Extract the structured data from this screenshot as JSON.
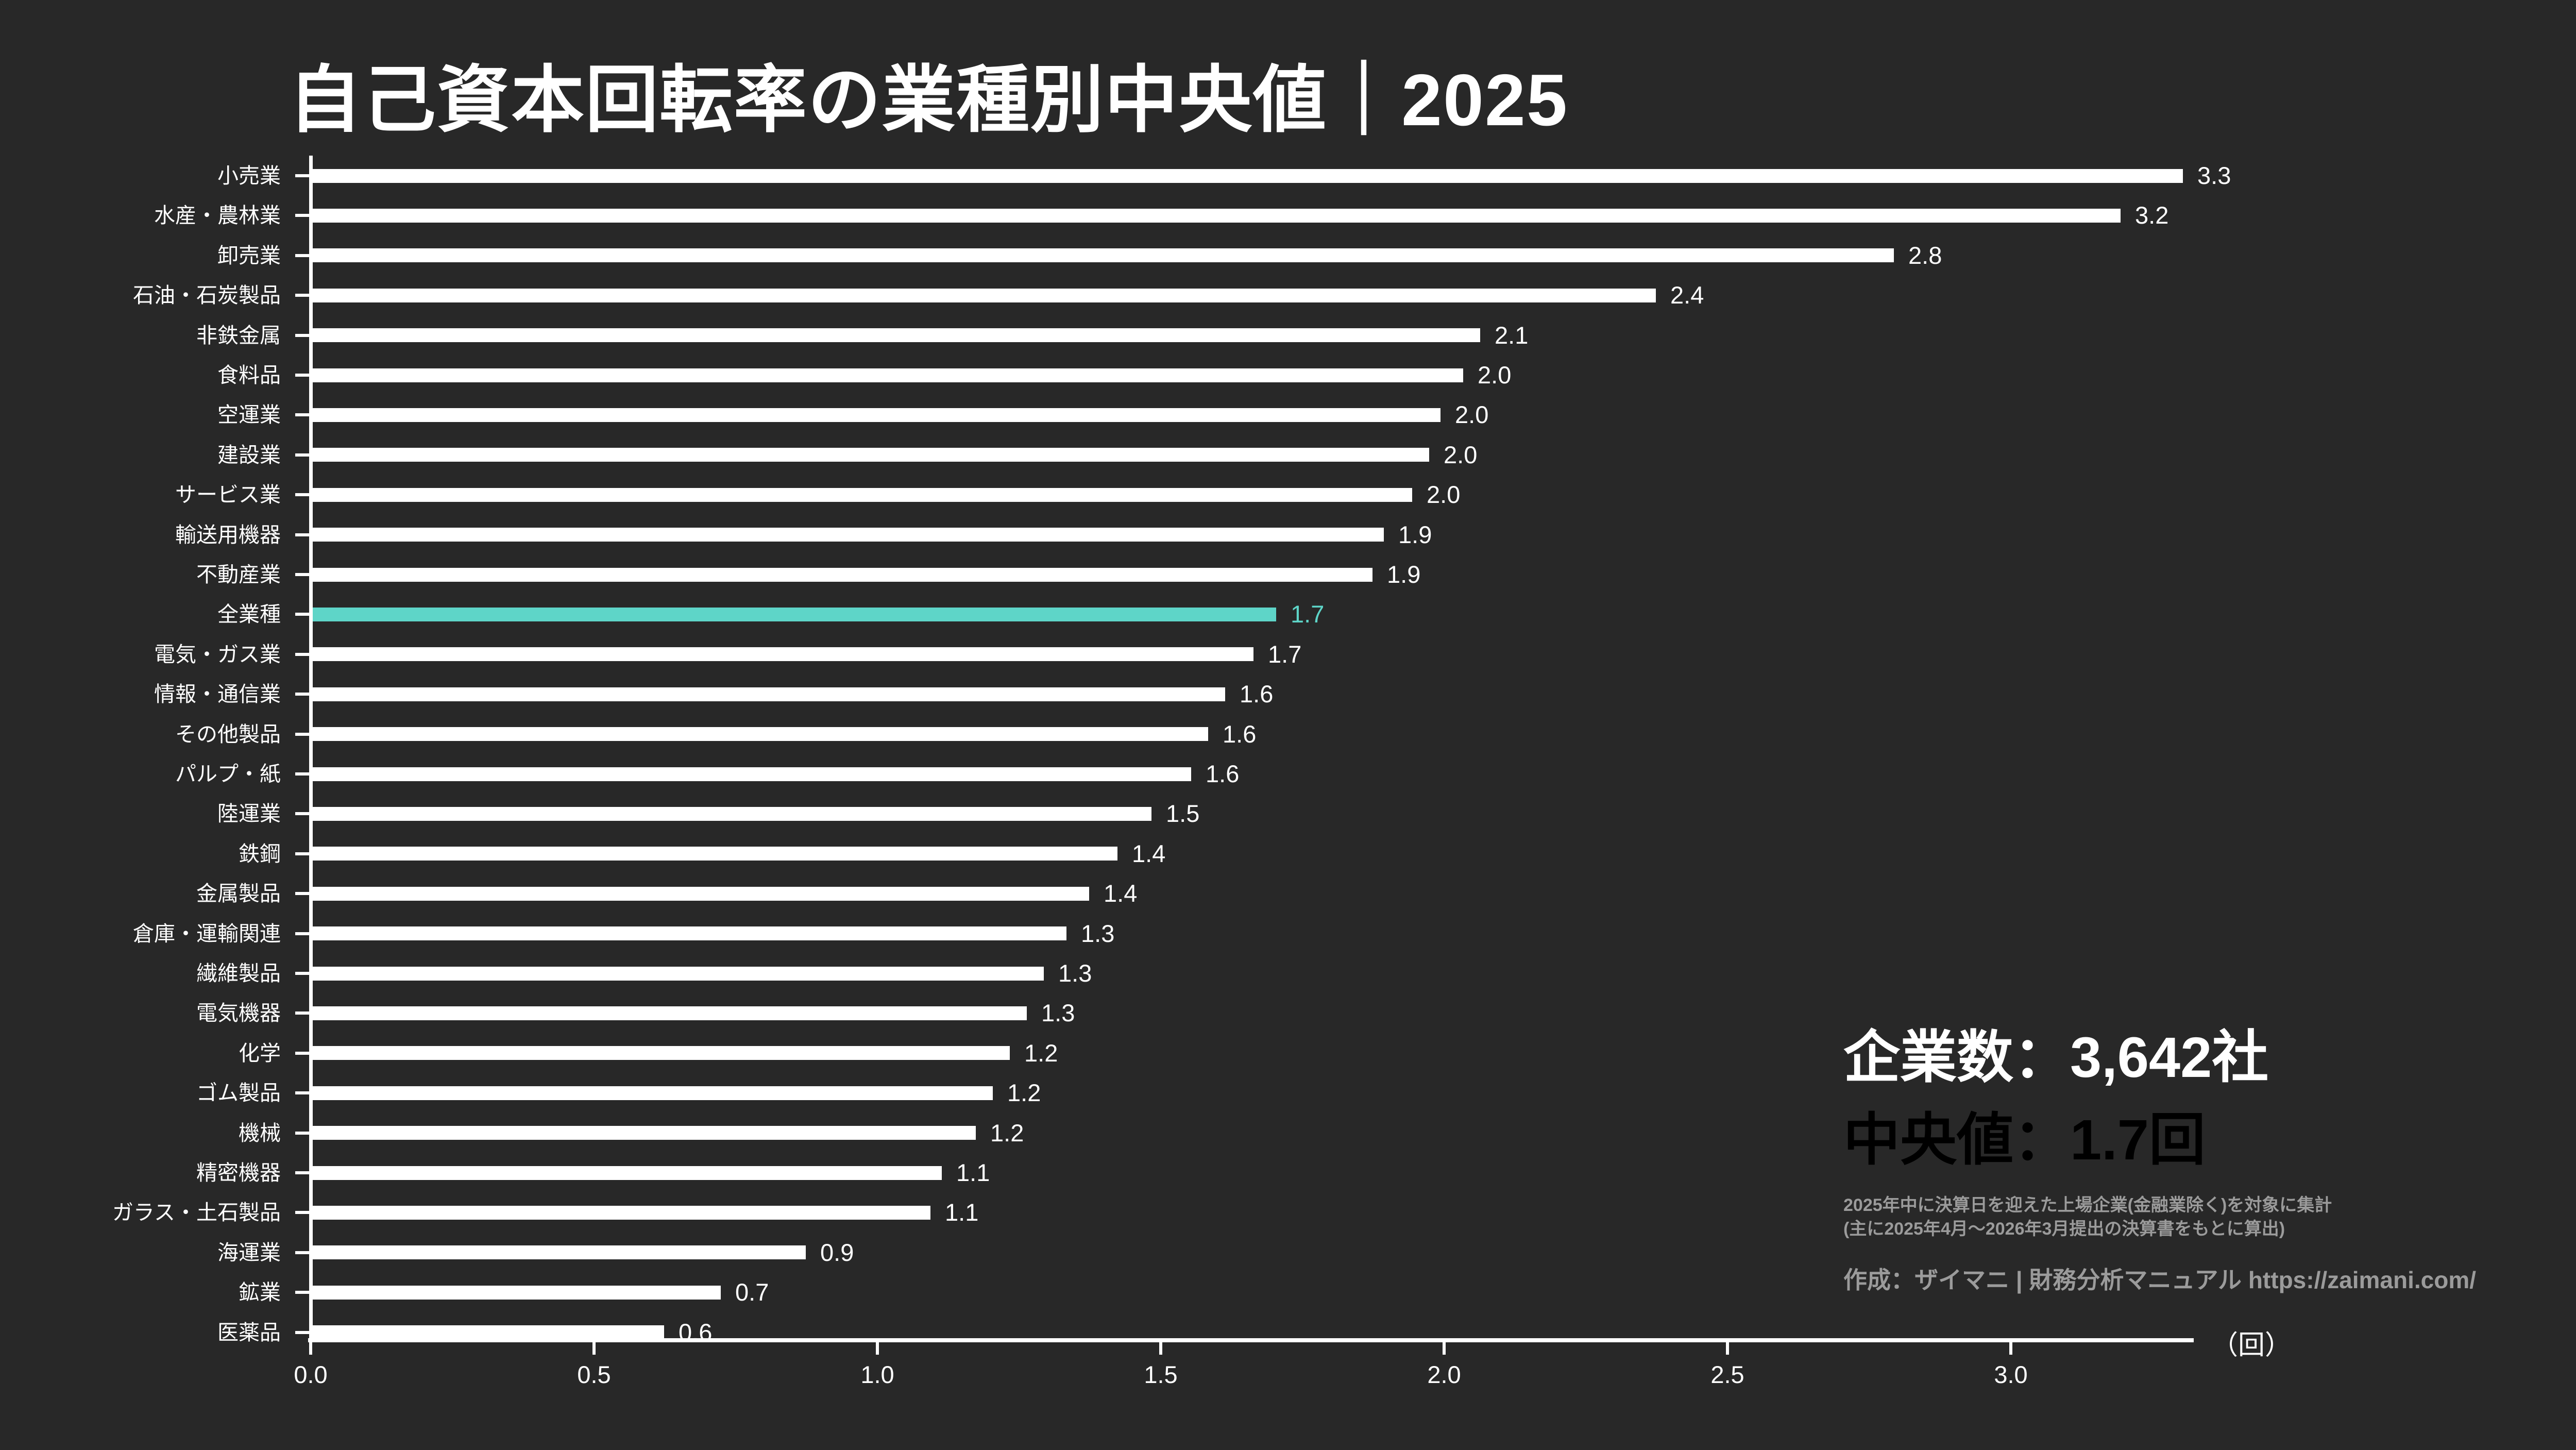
{
  "title": "自己資本回転率の業種別中央値｜2025",
  "colors": {
    "background": "#282828",
    "bar": "#ffffff",
    "highlight": "#5ED5C8",
    "text": "#ffffff",
    "muted": "#9b9b9b"
  },
  "chart_data": {
    "type": "bar",
    "orientation": "horizontal",
    "title": "自己資本回転率の業種別中央値｜2025",
    "unit": "（回）",
    "xlabel": "",
    "ylabel": "",
    "xlim": [
      0.0,
      3.3
    ],
    "grid": false,
    "legend": "none",
    "x_ticks": [
      "0.0",
      "0.5",
      "1.0",
      "1.5",
      "2.0",
      "2.5",
      "3.0"
    ],
    "highlight_category": "全業種",
    "rows": [
      {
        "label": "小売業",
        "display": "3.3",
        "value": 3.3,
        "bar": 3.3,
        "highlight": false
      },
      {
        "label": "水産・農林業",
        "display": "3.2",
        "value": 3.2,
        "bar": 3.19,
        "highlight": false
      },
      {
        "label": "卸売業",
        "display": "2.8",
        "value": 2.8,
        "bar": 2.79,
        "highlight": false
      },
      {
        "label": "石油・石炭製品",
        "display": "2.4",
        "value": 2.4,
        "bar": 2.37,
        "highlight": false
      },
      {
        "label": "非鉄金属",
        "display": "2.1",
        "value": 2.1,
        "bar": 2.06,
        "highlight": false
      },
      {
        "label": "食料品",
        "display": "2.0",
        "value": 2.0,
        "bar": 2.03,
        "highlight": false
      },
      {
        "label": "空運業",
        "display": "2.0",
        "value": 2.0,
        "bar": 1.99,
        "highlight": false
      },
      {
        "label": "建設業",
        "display": "2.0",
        "value": 2.0,
        "bar": 1.97,
        "highlight": false
      },
      {
        "label": "サービス業",
        "display": "2.0",
        "value": 2.0,
        "bar": 1.94,
        "highlight": false
      },
      {
        "label": "輸送用機器",
        "display": "1.9",
        "value": 1.9,
        "bar": 1.89,
        "highlight": false
      },
      {
        "label": "不動産業",
        "display": "1.9",
        "value": 1.9,
        "bar": 1.87,
        "highlight": false
      },
      {
        "label": "全業種",
        "display": "1.7",
        "value": 1.7,
        "bar": 1.7,
        "highlight": true
      },
      {
        "label": "電気・ガス業",
        "display": "1.7",
        "value": 1.7,
        "bar": 1.66,
        "highlight": false
      },
      {
        "label": "情報・通信業",
        "display": "1.6",
        "value": 1.6,
        "bar": 1.61,
        "highlight": false
      },
      {
        "label": "その他製品",
        "display": "1.6",
        "value": 1.6,
        "bar": 1.58,
        "highlight": false
      },
      {
        "label": "パルプ・紙",
        "display": "1.6",
        "value": 1.6,
        "bar": 1.55,
        "highlight": false
      },
      {
        "label": "陸運業",
        "display": "1.5",
        "value": 1.5,
        "bar": 1.48,
        "highlight": false
      },
      {
        "label": "鉄鋼",
        "display": "1.4",
        "value": 1.4,
        "bar": 1.42,
        "highlight": false
      },
      {
        "label": "金属製品",
        "display": "1.4",
        "value": 1.4,
        "bar": 1.37,
        "highlight": false
      },
      {
        "label": "倉庫・運輸関連",
        "display": "1.3",
        "value": 1.3,
        "bar": 1.33,
        "highlight": false
      },
      {
        "label": "繊維製品",
        "display": "1.3",
        "value": 1.3,
        "bar": 1.29,
        "highlight": false
      },
      {
        "label": "電気機器",
        "display": "1.3",
        "value": 1.3,
        "bar": 1.26,
        "highlight": false
      },
      {
        "label": "化学",
        "display": "1.2",
        "value": 1.2,
        "bar": 1.23,
        "highlight": false
      },
      {
        "label": "ゴム製品",
        "display": "1.2",
        "value": 1.2,
        "bar": 1.2,
        "highlight": false
      },
      {
        "label": "機械",
        "display": "1.2",
        "value": 1.2,
        "bar": 1.17,
        "highlight": false
      },
      {
        "label": "精密機器",
        "display": "1.1",
        "value": 1.1,
        "bar": 1.11,
        "highlight": false
      },
      {
        "label": "ガラス・土石製品",
        "display": "1.1",
        "value": 1.1,
        "bar": 1.09,
        "highlight": false
      },
      {
        "label": "海運業",
        "display": "0.9",
        "value": 0.9,
        "bar": 0.87,
        "highlight": false
      },
      {
        "label": "鉱業",
        "display": "0.7",
        "value": 0.7,
        "bar": 0.72,
        "highlight": false
      },
      {
        "label": "医薬品",
        "display": "0.6",
        "value": 0.6,
        "bar": 0.62,
        "highlight": false
      }
    ]
  },
  "stats": {
    "companies": "企業数：3,642社",
    "median": "中央値：1.7回"
  },
  "notes": {
    "line1": "2025年中に決算日を迎えた上場企業(金融業除く)を対象に集計",
    "line2": "(主に2025年4月〜2026年3月提出の決算書をもとに算出)"
  },
  "credit": "作成：ザイマニ | 財務分析マニュアル https://zaimani.com/"
}
